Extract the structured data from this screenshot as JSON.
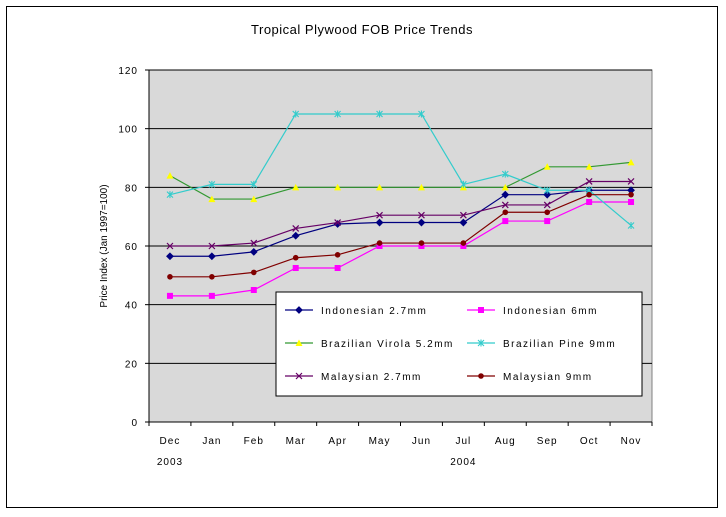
{
  "chart_data": {
    "type": "line",
    "title": "Tropical Plywood FOB Price Trends",
    "xlabel": "",
    "ylabel": "Price Index (Jan 1997=100)",
    "categories": [
      "Dec",
      "Jan",
      "Feb",
      "Mar",
      "Apr",
      "May",
      "Jun",
      "Jul",
      "Aug",
      "Sep",
      "Oct",
      "Nov"
    ],
    "year_labels": [
      {
        "label": "2003",
        "category": "Dec"
      },
      {
        "label": "2004",
        "category": "Jul"
      }
    ],
    "ylim": [
      0,
      120
    ],
    "yticks": [
      0,
      20,
      40,
      60,
      80,
      100,
      120
    ],
    "grid": true,
    "plot_background": "#d9d9d9",
    "legend_position": "lower-center, inside plot",
    "series": [
      {
        "name": "Indonesian 2.7mm",
        "color": "#000080",
        "marker": "diamond",
        "values": [
          56.5,
          56.5,
          58,
          63.5,
          67.5,
          68,
          68,
          68,
          77.5,
          77.5,
          79,
          79
        ]
      },
      {
        "name": "Indonesian 6mm",
        "color": "#ff00ff",
        "marker": "square",
        "values": [
          43,
          43,
          45,
          52.5,
          52.5,
          60,
          60,
          60,
          68.5,
          68.5,
          75,
          75
        ]
      },
      {
        "name": "Brazilian Virola 5.2mm",
        "color": "#339933",
        "marker": "triangle",
        "marker_color": "#ffff00",
        "values": [
          84,
          76,
          76,
          80,
          80,
          80,
          80,
          80,
          80,
          87,
          87,
          88.5
        ]
      },
      {
        "name": "Brazilian Pine 9mm",
        "color": "#33cccc",
        "marker": "star",
        "values": [
          77.5,
          81,
          81,
          105,
          105,
          105,
          105,
          81,
          84.5,
          79,
          79,
          67
        ]
      },
      {
        "name": "Malaysian 2.7mm",
        "color": "#660066",
        "marker": "x",
        "values": [
          60,
          60,
          61,
          66,
          68,
          70.5,
          70.5,
          70.5,
          74,
          74,
          82,
          82
        ]
      },
      {
        "name": "Malaysian 9mm",
        "color": "#800000",
        "marker": "circle",
        "values": [
          49.5,
          49.5,
          51,
          56,
          57,
          61,
          61,
          61,
          71.5,
          71.5,
          77.5,
          77.5
        ]
      }
    ]
  }
}
